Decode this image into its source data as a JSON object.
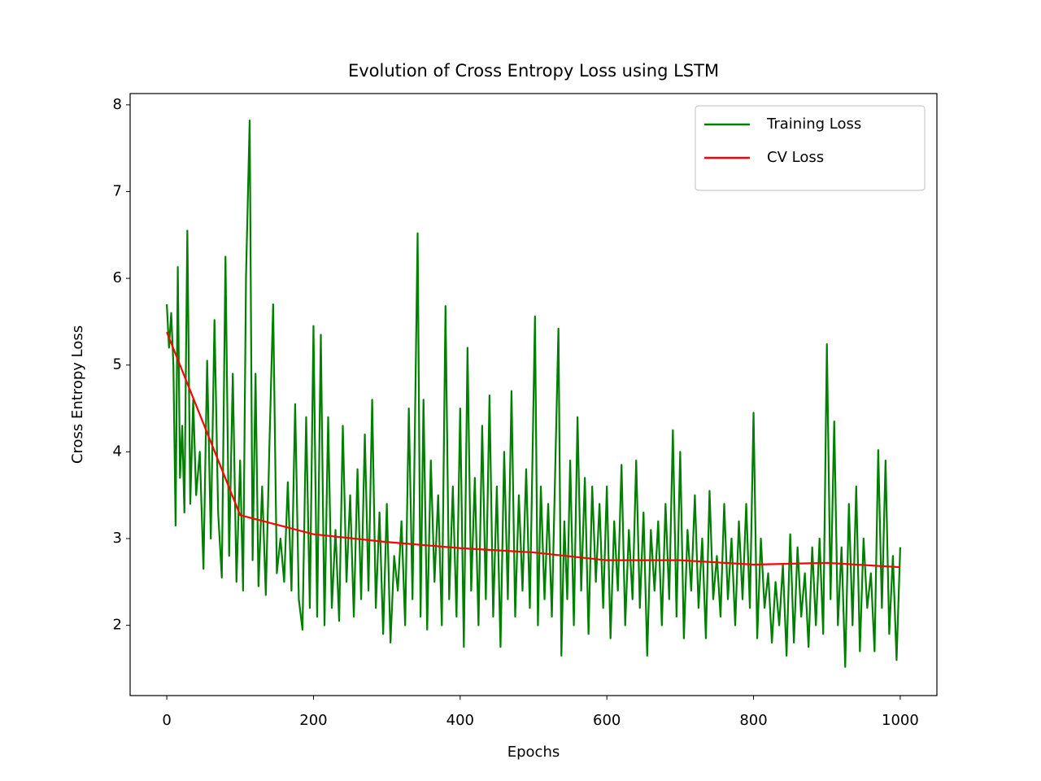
{
  "chart_data": {
    "type": "line",
    "title": "Evolution of Cross Entropy Loss using LSTM",
    "x_label": "Epochs",
    "y_label": "Cross Entropy Loss",
    "xlim": [
      -50,
      1050
    ],
    "ylim": [
      1.19,
      8.13
    ],
    "xticks": [
      0,
      200,
      400,
      600,
      800,
      1000
    ],
    "yticks": [
      2,
      3,
      4,
      5,
      6,
      7,
      8
    ],
    "legend": "upper right",
    "grid": false,
    "series": [
      {
        "name": "Training Loss",
        "color": "#008000",
        "x": [
          0,
          3,
          6,
          9,
          12,
          15,
          18,
          21,
          24,
          28,
          32,
          36,
          40,
          45,
          50,
          55,
          60,
          65,
          70,
          75,
          80,
          85,
          90,
          95,
          100,
          104,
          108,
          113,
          117,
          121,
          125,
          130,
          135,
          140,
          145,
          150,
          155,
          160,
          165,
          170,
          175,
          180,
          185,
          190,
          195,
          200,
          205,
          210,
          215,
          220,
          225,
          230,
          235,
          240,
          245,
          250,
          255,
          260,
          265,
          270,
          275,
          280,
          285,
          290,
          295,
          300,
          305,
          310,
          315,
          320,
          325,
          330,
          335,
          342,
          346,
          350,
          355,
          360,
          365,
          370,
          375,
          380,
          385,
          390,
          395,
          400,
          405,
          410,
          415,
          420,
          425,
          430,
          435,
          440,
          445,
          450,
          455,
          460,
          465,
          470,
          475,
          480,
          485,
          490,
          495,
          502,
          506,
          510,
          515,
          520,
          525,
          534,
          538,
          542,
          546,
          550,
          555,
          560,
          565,
          570,
          575,
          580,
          585,
          590,
          595,
          600,
          605,
          610,
          615,
          620,
          625,
          630,
          635,
          640,
          645,
          650,
          655,
          660,
          665,
          670,
          675,
          680,
          685,
          690,
          695,
          700,
          705,
          710,
          715,
          720,
          725,
          730,
          735,
          740,
          745,
          750,
          755,
          760,
          765,
          770,
          775,
          780,
          785,
          790,
          795,
          800,
          805,
          810,
          815,
          820,
          825,
          830,
          835,
          840,
          845,
          850,
          855,
          860,
          865,
          870,
          875,
          880,
          885,
          890,
          895,
          900,
          905,
          910,
          915,
          920,
          925,
          930,
          935,
          940,
          945,
          950,
          955,
          960,
          965,
          970,
          975,
          980,
          985,
          990,
          995,
          1000
        ],
        "values": [
          5.7,
          5.2,
          5.6,
          5.0,
          3.15,
          6.13,
          3.7,
          4.3,
          3.3,
          6.55,
          3.4,
          4.6,
          3.5,
          4.0,
          2.65,
          5.05,
          3.0,
          5.52,
          3.3,
          2.55,
          6.25,
          2.8,
          4.9,
          2.5,
          3.9,
          2.4,
          6.02,
          7.82,
          2.75,
          4.9,
          2.45,
          3.6,
          2.35,
          4.1,
          5.7,
          2.6,
          3.0,
          2.5,
          3.65,
          2.4,
          4.55,
          2.3,
          1.95,
          4.4,
          2.2,
          5.45,
          2.1,
          5.35,
          2.0,
          4.4,
          2.2,
          3.1,
          2.05,
          4.3,
          2.5,
          3.5,
          2.1,
          3.8,
          2.3,
          4.2,
          2.4,
          4.6,
          2.2,
          3.3,
          1.9,
          3.4,
          1.8,
          2.8,
          2.4,
          3.2,
          2.0,
          4.5,
          2.3,
          6.52,
          2.1,
          4.6,
          1.95,
          3.9,
          2.5,
          3.5,
          2.0,
          5.68,
          2.3,
          3.6,
          2.1,
          4.5,
          1.75,
          5.2,
          2.4,
          3.7,
          2.0,
          4.3,
          2.3,
          4.65,
          2.1,
          3.6,
          1.75,
          4.0,
          2.3,
          4.7,
          2.1,
          3.5,
          2.4,
          3.8,
          2.2,
          5.56,
          2.0,
          3.6,
          2.3,
          3.4,
          2.1,
          5.42,
          1.65,
          3.2,
          2.3,
          3.9,
          2.0,
          4.4,
          2.4,
          3.7,
          1.9,
          3.6,
          2.5,
          3.4,
          2.2,
          3.6,
          1.85,
          3.2,
          2.4,
          3.85,
          2.0,
          3.1,
          2.3,
          3.9,
          2.2,
          3.3,
          1.65,
          3.1,
          2.4,
          3.2,
          2.0,
          3.4,
          2.3,
          4.25,
          2.1,
          4.0,
          1.85,
          3.1,
          2.4,
          3.5,
          2.2,
          3.0,
          1.85,
          3.55,
          2.3,
          2.8,
          2.1,
          3.4,
          2.3,
          3.0,
          2.0,
          3.2,
          2.3,
          3.4,
          2.2,
          4.45,
          1.85,
          3.0,
          2.2,
          2.6,
          1.8,
          2.5,
          2.0,
          2.7,
          1.65,
          3.05,
          1.8,
          2.9,
          2.1,
          2.6,
          1.75,
          2.9,
          2.0,
          3.0,
          1.9,
          5.24,
          2.3,
          4.35,
          2.0,
          2.9,
          1.52,
          3.4,
          2.0,
          3.6,
          1.7,
          3.0,
          2.2,
          2.6,
          1.7,
          4.02,
          2.2,
          3.9,
          1.9,
          2.8,
          1.6,
          2.9
        ]
      },
      {
        "name": "CV Loss",
        "color": "#ff0000",
        "x": [
          0,
          100,
          200,
          300,
          400,
          500,
          600,
          700,
          800,
          900,
          1000
        ],
        "values": [
          5.38,
          3.27,
          3.05,
          2.96,
          2.89,
          2.84,
          2.75,
          2.75,
          2.7,
          2.72,
          2.67
        ]
      }
    ]
  }
}
